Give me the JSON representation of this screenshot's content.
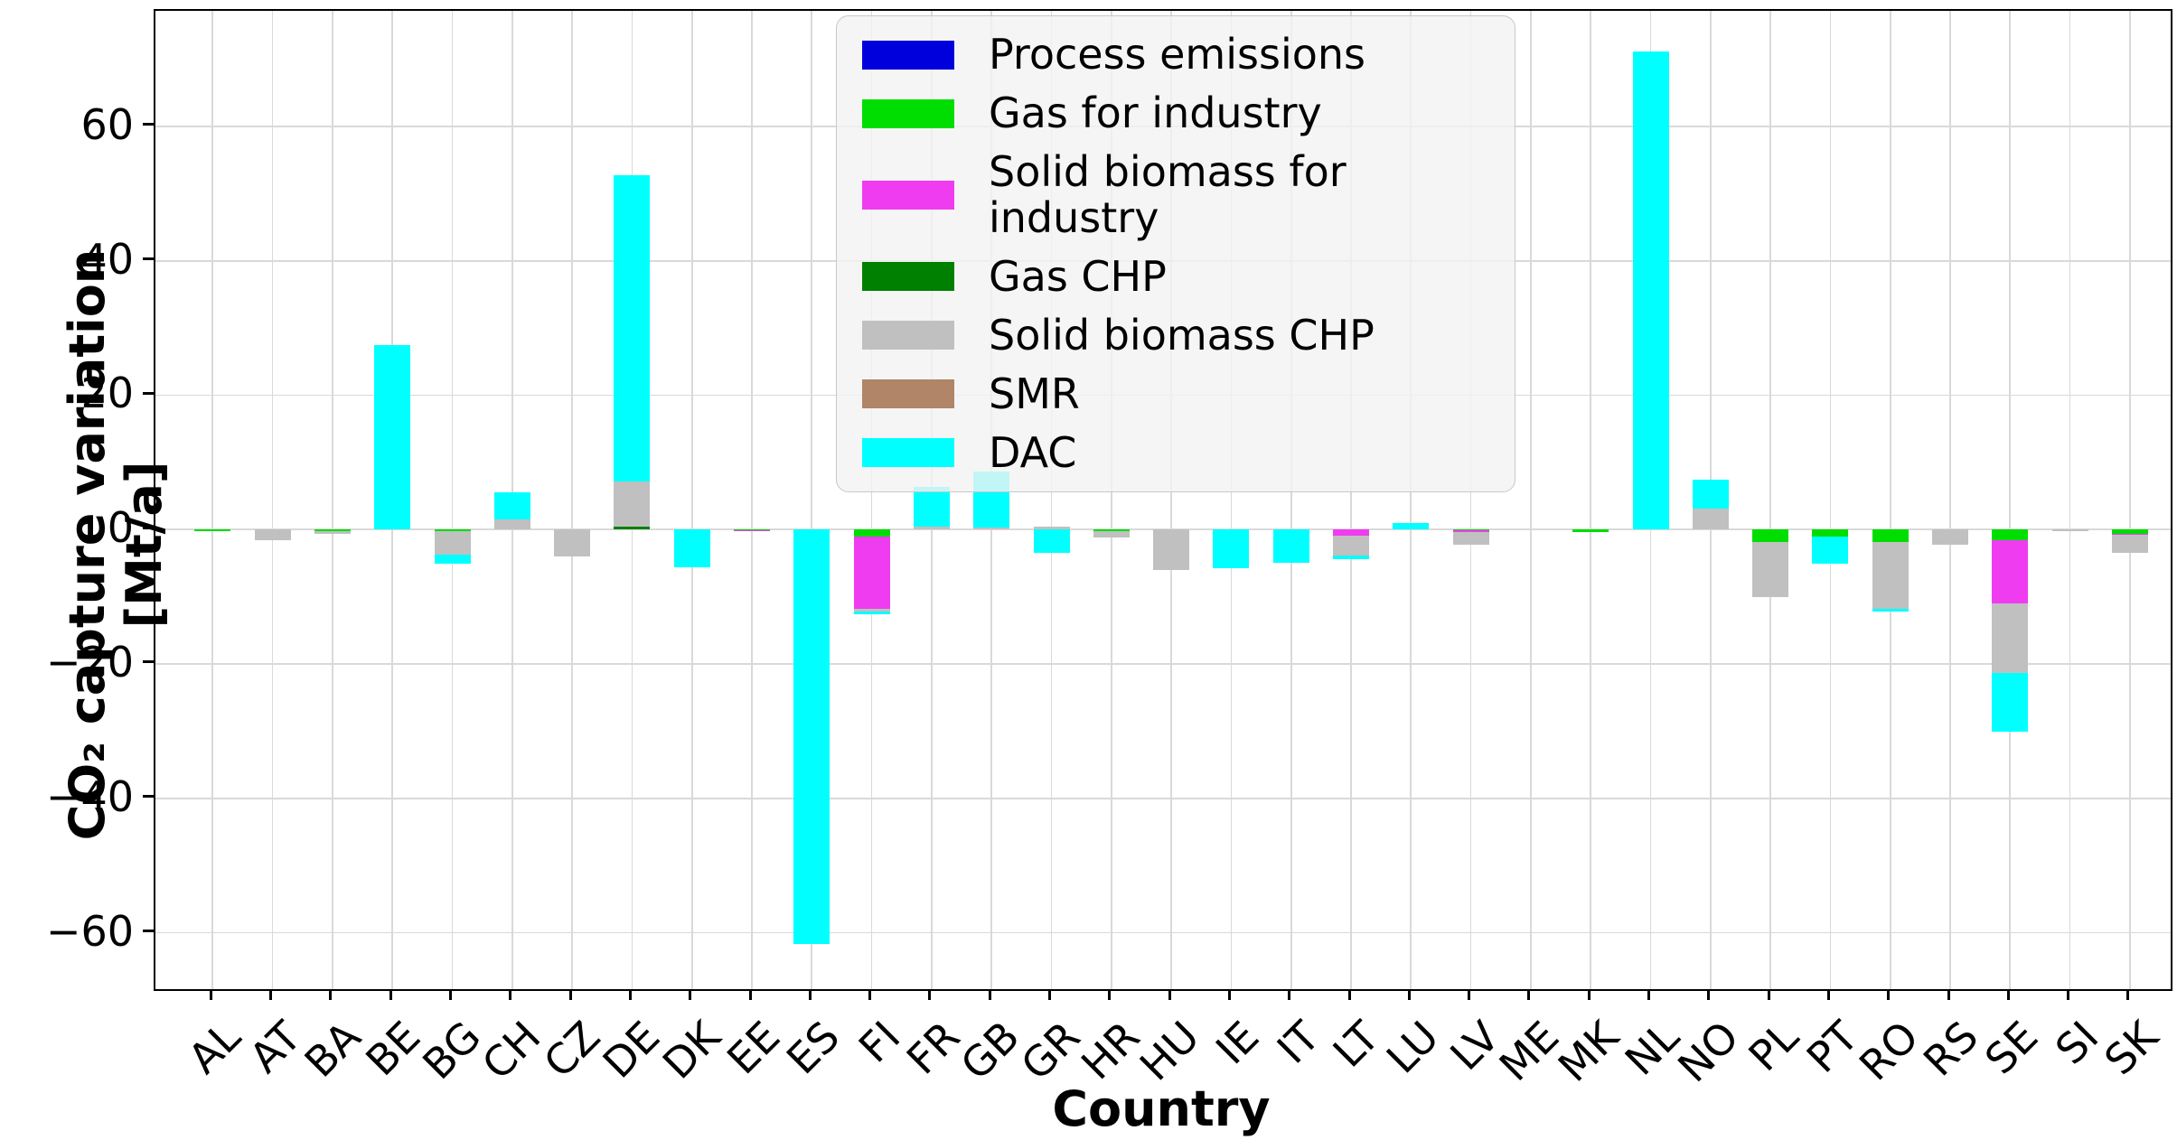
{
  "figure": {
    "background": "#ffffff"
  },
  "axes": {
    "ylabel": "CO₂ capture variation [Mt/a]",
    "xlabel": "Country",
    "grid_color": "#d9d9d9",
    "spine_color": "#000000"
  },
  "legend": {
    "items": [
      {
        "label": "Process emissions",
        "color": "#0000dd"
      },
      {
        "label": "Gas for industry",
        "color": "#00dd00"
      },
      {
        "label": "Solid biomass for industry",
        "color": "#f03cf0"
      },
      {
        "label": "Gas CHP",
        "color": "#008000"
      },
      {
        "label": "Solid biomass CHP",
        "color": "#c0c0c0"
      },
      {
        "label": "SMR",
        "color": "#b08568"
      },
      {
        "label": "DAC",
        "color": "#00ffff"
      }
    ]
  },
  "chart_data": {
    "type": "bar",
    "stacked": true,
    "title": "",
    "xlabel": "Country",
    "ylabel": "CO₂ capture variation [Mt/a]",
    "ylim": [
      -68.4,
      77.2
    ],
    "yticks": [
      60,
      40,
      20,
      0,
      -20,
      -40,
      -60
    ],
    "grid": true,
    "legend_position": "upper center",
    "categories": [
      "AL",
      "AT",
      "BA",
      "BE",
      "BG",
      "CH",
      "CZ",
      "DE",
      "DK",
      "EE",
      "ES",
      "FI",
      "FR",
      "GB",
      "GR",
      "HR",
      "HU",
      "IE",
      "IT",
      "LT",
      "LU",
      "LV",
      "ME",
      "MK",
      "NL",
      "NO",
      "PL",
      "PT",
      "RO",
      "RS",
      "SE",
      "SI",
      "SK"
    ],
    "series": [
      {
        "name": "Process emissions",
        "color": "#0000dd",
        "values": [
          0,
          0,
          0,
          0,
          0,
          0,
          0,
          0,
          0,
          0,
          0,
          0,
          0,
          0,
          0,
          0,
          0,
          0,
          0,
          0,
          0,
          0,
          0,
          0,
          0,
          0,
          0,
          0,
          0,
          0,
          0,
          0,
          0
        ]
      },
      {
        "name": "Gas for industry",
        "color": "#00dd00",
        "values": [
          -0.3,
          0,
          -0.2,
          0,
          -0.2,
          0,
          0,
          0,
          0,
          -0.1,
          0,
          -1.0,
          0,
          0,
          0,
          -0.25,
          0,
          0,
          0,
          0,
          0,
          -0.1,
          0,
          -0.4,
          0,
          0,
          -1.9,
          -1.0,
          -1.9,
          0,
          -1.6,
          0,
          -0.6
        ]
      },
      {
        "name": "Solid biomass for industry",
        "color": "#f03cf0",
        "values": [
          0,
          0,
          0,
          0,
          0,
          0,
          0,
          0,
          0,
          -0.2,
          0,
          -10.8,
          0,
          0,
          0,
          0,
          0,
          0,
          0,
          -0.9,
          0,
          -0.3,
          0,
          0,
          0,
          0,
          0,
          0,
          0,
          0,
          -9.4,
          0,
          -0.2
        ]
      },
      {
        "name": "Gas CHP",
        "color": "#008000",
        "values": [
          0,
          0,
          0,
          0,
          0,
          0,
          0,
          0.5,
          0,
          0,
          0,
          0,
          0,
          0,
          0,
          0,
          0,
          0,
          0,
          0,
          0,
          0,
          0,
          0,
          0,
          0,
          0,
          0,
          0,
          0,
          0,
          0,
          0
        ]
      },
      {
        "name": "Solid biomass CHP",
        "color": "#c0c0c0",
        "values": [
          0,
          -1.6,
          -0.4,
          0,
          -3.6,
          1.5,
          -4.0,
          6.7,
          0,
          0,
          0,
          -0.45,
          0.5,
          0.3,
          0.5,
          -0.9,
          -6.0,
          0,
          0,
          -3.0,
          0,
          -1.8,
          0,
          0,
          0,
          3.1,
          -8.1,
          0,
          -9.85,
          -2.2,
          -10.3,
          -0.3,
          -2.7
        ]
      },
      {
        "name": "SMR",
        "color": "#b08568",
        "values": [
          0,
          0,
          0,
          0,
          0,
          0,
          0,
          0,
          0,
          0,
          0,
          0,
          0,
          0,
          0,
          0,
          0,
          0,
          0,
          0,
          0,
          0,
          0,
          0,
          0,
          0,
          0,
          0,
          0,
          0,
          0,
          0,
          0
        ]
      },
      {
        "name": "DAC",
        "color": "#00ffff",
        "values": [
          0,
          0,
          0,
          27.5,
          -1.3,
          4.0,
          0,
          45.5,
          -5.6,
          0,
          -61.7,
          -0.35,
          5.8,
          8.3,
          -3.5,
          0,
          0,
          -5.7,
          -5.0,
          -0.45,
          1.0,
          0,
          0,
          0,
          71.1,
          4.3,
          0,
          -4.1,
          -0.45,
          0,
          -8.8,
          0,
          0
        ]
      }
    ]
  }
}
